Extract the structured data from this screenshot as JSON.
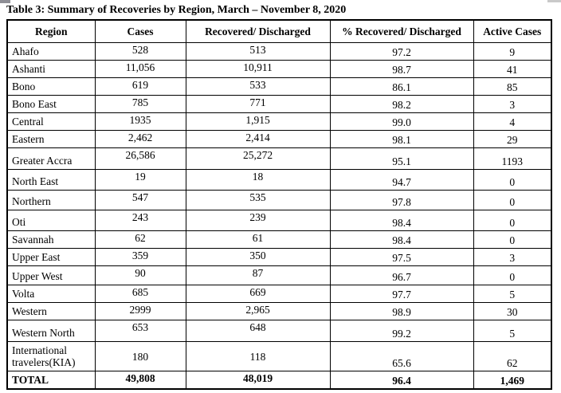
{
  "title": "Table 3: Summary of Recoveries by Region, March – November 8, 2020",
  "colors": {
    "border": "#000000",
    "text": "#000000",
    "page_background": "#ffffff"
  },
  "table": {
    "headers": [
      "Region",
      "Cases",
      "Recovered/ Discharged",
      "% Recovered/ Discharged",
      "Active Cases"
    ],
    "rows": [
      {
        "region": "Ahafo",
        "cases": "528",
        "recovered": "513",
        "pct": "97.2",
        "active": "9"
      },
      {
        "region": "Ashanti",
        "cases": "11,056",
        "recovered": "10,911",
        "pct": "98.7",
        "active": "41"
      },
      {
        "region": "Bono",
        "cases": "619",
        "recovered": "533",
        "pct": "86.1",
        "active": "85"
      },
      {
        "region": "Bono East",
        "cases": "785",
        "recovered": "771",
        "pct": "98.2",
        "active": "3"
      },
      {
        "region": "Central",
        "cases": "1935",
        "recovered": "1,915",
        "pct": "99.0",
        "active": "4"
      },
      {
        "region": "Eastern",
        "cases": "2,462",
        "recovered": "2,414",
        "pct": "98.1",
        "active": "29"
      },
      {
        "region": "Greater Accra",
        "cases": "26,586",
        "recovered": "25,272",
        "pct": "95.1",
        "active": "1193"
      },
      {
        "region": "North East",
        "cases": "19",
        "recovered": "18",
        "pct": "94.7",
        "active": "0"
      },
      {
        "region": "Northern",
        "cases": "547",
        "recovered": "535",
        "pct": "97.8",
        "active": "0"
      },
      {
        "region": "Oti",
        "cases": "243",
        "recovered": "239",
        "pct": "98.4",
        "active": "0"
      },
      {
        "region": "Savannah",
        "cases": "62",
        "recovered": "61",
        "pct": "98.4",
        "active": "0"
      },
      {
        "region": "Upper East",
        "cases": "359",
        "recovered": "350",
        "pct": "97.5",
        "active": "3"
      },
      {
        "region": "Upper West",
        "cases": "90",
        "recovered": "87",
        "pct": "96.7",
        "active": "0"
      },
      {
        "region": "Volta",
        "cases": "685",
        "recovered": "669",
        "pct": "97.7",
        "active": "5"
      },
      {
        "region": "Western",
        "cases": "2999",
        "recovered": "2,965",
        "pct": "98.9",
        "active": "30"
      },
      {
        "region": "Western North",
        "cases": "653",
        "recovered": "648",
        "pct": "99.2",
        "active": "5"
      },
      {
        "region": "International travelers(KIA)",
        "cases": "180",
        "recovered": "118",
        "pct": "65.6",
        "active": "62"
      },
      {
        "region": "TOTAL",
        "cases": "49,808",
        "recovered": "48,019",
        "pct": "96.4",
        "active": "1,469"
      }
    ]
  }
}
